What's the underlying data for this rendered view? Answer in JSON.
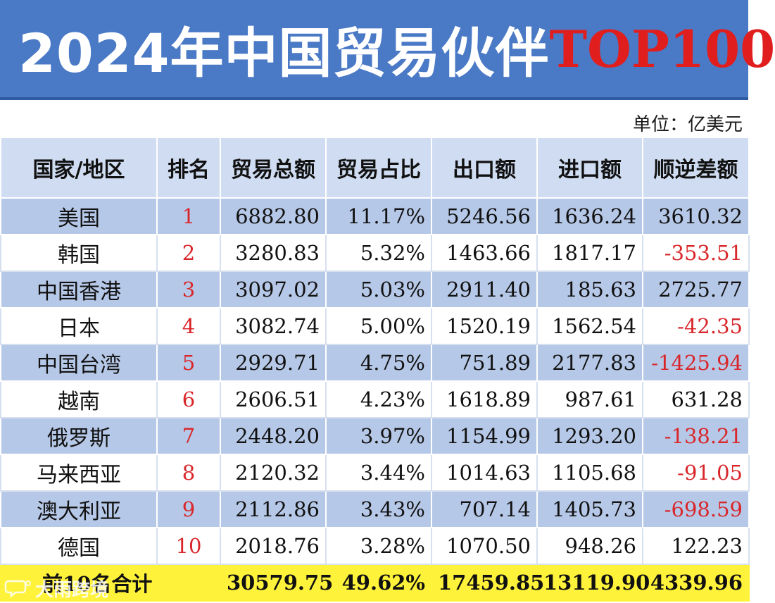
{
  "banner": {
    "title_main": "2024年中国贸易伙伴",
    "title_highlight": "TOP100"
  },
  "unit_label": "单位：亿美元",
  "table": {
    "headers": [
      "国家/地区",
      "排名",
      "贸易总额",
      "贸易占比",
      "出口额",
      "进口额",
      "顺逆差额"
    ],
    "rows": [
      {
        "name": "美国",
        "rank": "1",
        "total": "6882.80",
        "share": "11.17%",
        "export": "5246.56",
        "import": "1636.24",
        "balance": "3610.32"
      },
      {
        "name": "韩国",
        "rank": "2",
        "total": "3280.83",
        "share": "5.32%",
        "export": "1463.66",
        "import": "1817.17",
        "balance": "-353.51"
      },
      {
        "name": "中国香港",
        "rank": "3",
        "total": "3097.02",
        "share": "5.03%",
        "export": "2911.40",
        "import": "185.63",
        "balance": "2725.77"
      },
      {
        "name": "日本",
        "rank": "4",
        "total": "3082.74",
        "share": "5.00%",
        "export": "1520.19",
        "import": "1562.54",
        "balance": "-42.35"
      },
      {
        "name": "中国台湾",
        "rank": "5",
        "total": "2929.71",
        "share": "4.75%",
        "export": "751.89",
        "import": "2177.83",
        "balance": "-1425.94"
      },
      {
        "name": "越南",
        "rank": "6",
        "total": "2606.51",
        "share": "4.23%",
        "export": "1618.89",
        "import": "987.61",
        "balance": "631.28"
      },
      {
        "name": "俄罗斯",
        "rank": "7",
        "total": "2448.20",
        "share": "3.97%",
        "export": "1154.99",
        "import": "1293.20",
        "balance": "-138.21"
      },
      {
        "name": "马来西亚",
        "rank": "8",
        "total": "2120.32",
        "share": "3.44%",
        "export": "1014.63",
        "import": "1105.68",
        "balance": "-91.05"
      },
      {
        "name": "澳大利亚",
        "rank": "9",
        "total": "2112.86",
        "share": "3.43%",
        "export": "707.14",
        "import": "1405.73",
        "balance": "-698.59"
      },
      {
        "name": "德国",
        "rank": "10",
        "total": "2018.76",
        "share": "3.28%",
        "export": "1070.50",
        "import": "948.26",
        "balance": "122.23"
      }
    ],
    "total_row": {
      "name": "前10名合计",
      "total": "30579.75",
      "share": "49.62%",
      "export": "17459.85",
      "import": "13119.90",
      "balance": "4339.96"
    }
  },
  "watermark": {
    "text": "大雨跨境",
    "icon": "chat-bubble-logo-icon"
  },
  "colors": {
    "banner_blue": "#4a79c6",
    "title_red": "#e01e1e",
    "header_bg": "#cfdcf1",
    "row_blue": "#b6c8e7",
    "negative_red": "#d9262a",
    "total_yellow": "#fff23a"
  }
}
